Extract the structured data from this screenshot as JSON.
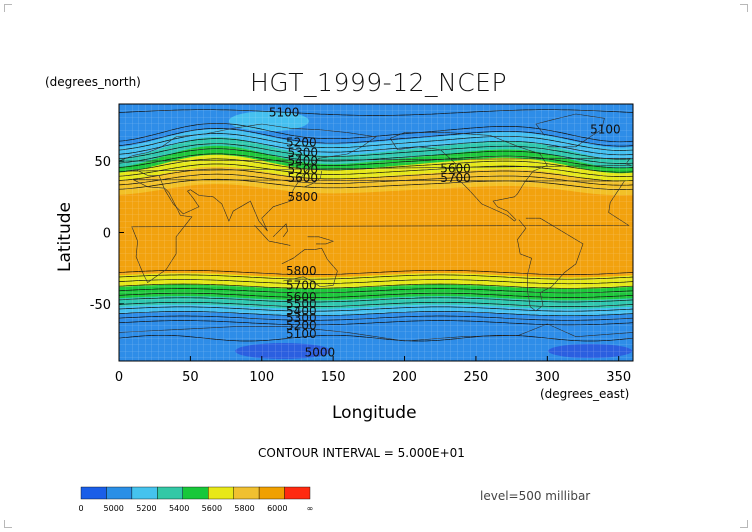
{
  "title": "HGT_1999-12_NCEP",
  "x_axis": {
    "label": "Longitude",
    "units": "(degrees_east)",
    "range": [
      0,
      360
    ],
    "ticks": [
      "0",
      "50",
      "100",
      "150",
      "200",
      "250",
      "300",
      "350"
    ],
    "tick_values": [
      0,
      50,
      100,
      150,
      200,
      250,
      300,
      350
    ]
  },
  "y_axis": {
    "label": "Latitude",
    "units": "(degrees_north)",
    "range": [
      -90,
      90
    ],
    "ticks": [
      "50",
      "0",
      "-50"
    ],
    "tick_values": [
      50,
      0,
      -50
    ]
  },
  "contour_interval_text": "CONTOUR INTERVAL = 5.000E+01",
  "level_text": "level=500 millibar",
  "colorbar": {
    "labels": [
      "0",
      "5000",
      "5200",
      "5400",
      "5600",
      "5800",
      "6000",
      "∞"
    ],
    "colors": [
      "#1a5ee8",
      "#2a8fe6",
      "#45c3ee",
      "#33c8a6",
      "#18c83a",
      "#e8e818",
      "#f0c030",
      "#f0a000",
      "#ff2a10"
    ]
  },
  "band_colors": {
    "deep_blue": "#2b5fe0",
    "blue": "#2e8de8",
    "light_blue": "#45c0f0",
    "teal": "#30c8b0",
    "green": "#1ec83c",
    "yellow": "#e6e81a",
    "gold": "#f2c128",
    "orange": "#f2a20e"
  },
  "contour_labels": [
    {
      "text": "5100",
      "lon": 105,
      "lat": 84
    },
    {
      "text": "5100",
      "lon": 330,
      "lat": 72
    },
    {
      "text": "5200",
      "lon": 117,
      "lat": 63
    },
    {
      "text": "5300",
      "lon": 118,
      "lat": 56
    },
    {
      "text": "5400",
      "lon": 118,
      "lat": 50
    },
    {
      "text": "5500",
      "lon": 118,
      "lat": 44
    },
    {
      "text": "5600",
      "lon": 118,
      "lat": 38
    },
    {
      "text": "5600",
      "lon": 225,
      "lat": 45
    },
    {
      "text": "5700",
      "lon": 225,
      "lat": 38
    },
    {
      "text": "5800",
      "lon": 118,
      "lat": 25
    },
    {
      "text": "5800",
      "lon": 117,
      "lat": -27
    },
    {
      "text": "5700",
      "lon": 117,
      "lat": -37
    },
    {
      "text": "5600",
      "lon": 117,
      "lat": -45
    },
    {
      "text": "5500",
      "lon": 117,
      "lat": -50
    },
    {
      "text": "5400",
      "lon": 117,
      "lat": -55
    },
    {
      "text": "5300",
      "lon": 117,
      "lat": -60
    },
    {
      "text": "5200",
      "lon": 117,
      "lat": -65
    },
    {
      "text": "5100",
      "lon": 117,
      "lat": -71
    },
    {
      "text": "5000",
      "lon": 130,
      "lat": -84
    }
  ]
}
